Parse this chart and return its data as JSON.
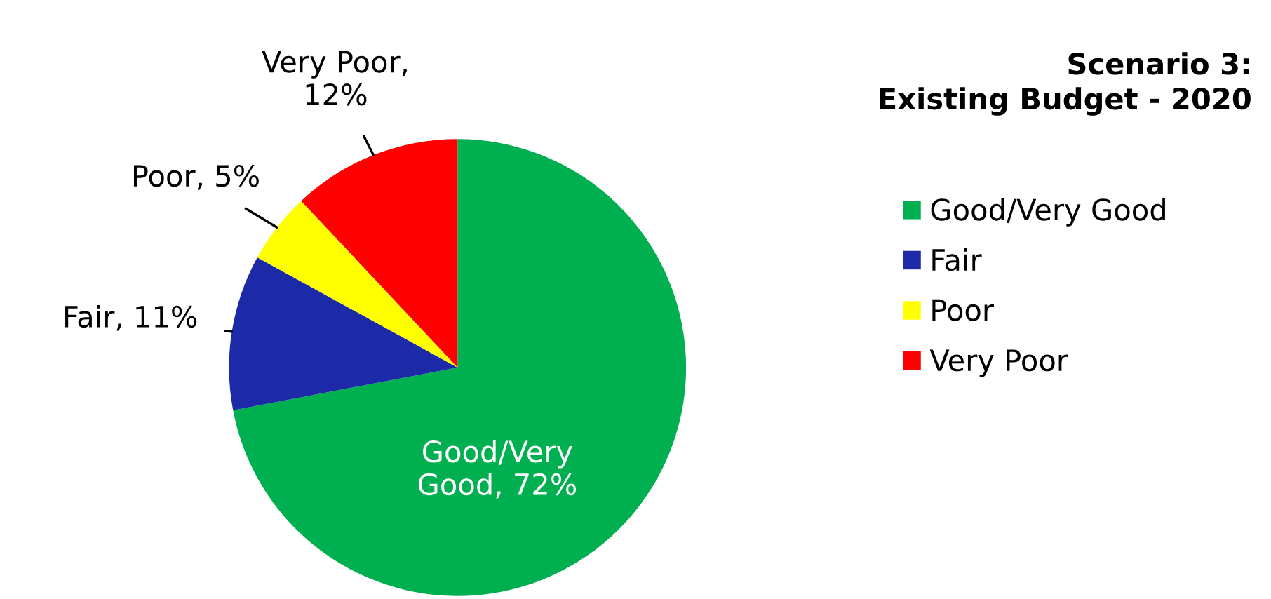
{
  "chart_data": {
    "type": "pie",
    "title": "Scenario 3:\nExisting Budget - 2020",
    "categories": [
      "Good/Very Good",
      "Fair",
      "Poor",
      "Very Poor"
    ],
    "values": [
      72,
      11,
      5,
      12
    ],
    "colors": [
      "#00b050",
      "#1c2aa8",
      "#ffff00",
      "#ff0000"
    ],
    "value_labels": [
      "Good/Very\nGood, 72%",
      "Fair, 11%",
      "Poor, 5%",
      "Very Poor,\n12%"
    ],
    "legend": "right"
  }
}
